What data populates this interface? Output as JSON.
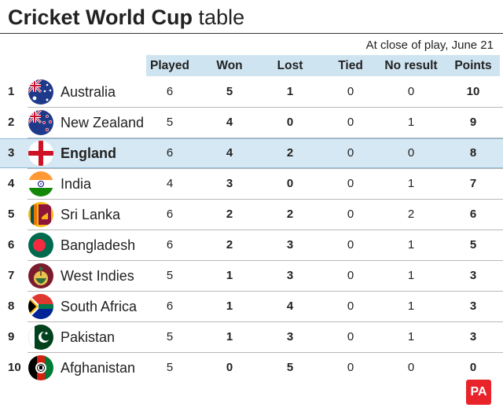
{
  "title": {
    "bold": "Cricket World Cup",
    "rest": "table"
  },
  "note": "At close of play, June 21",
  "columns": [
    "Played",
    "Won",
    "Lost",
    "Tied",
    "No result",
    "Points"
  ],
  "rows": [
    {
      "rank": "1",
      "team": "Australia",
      "flag": "australia-flag-icon",
      "played": "6",
      "won": "5",
      "lost": "1",
      "tied": "0",
      "nr": "0",
      "points": "10",
      "highlight": false
    },
    {
      "rank": "2",
      "team": "New Zealand",
      "flag": "new-zealand-flag-icon",
      "played": "5",
      "won": "4",
      "lost": "0",
      "tied": "0",
      "nr": "1",
      "points": "9",
      "highlight": false
    },
    {
      "rank": "3",
      "team": "England",
      "flag": "england-flag-icon",
      "played": "6",
      "won": "4",
      "lost": "2",
      "tied": "0",
      "nr": "0",
      "points": "8",
      "highlight": true
    },
    {
      "rank": "4",
      "team": "India",
      "flag": "india-flag-icon",
      "played": "4",
      "won": "3",
      "lost": "0",
      "tied": "0",
      "nr": "1",
      "points": "7",
      "highlight": false
    },
    {
      "rank": "5",
      "team": "Sri Lanka",
      "flag": "sri-lanka-flag-icon",
      "played": "6",
      "won": "2",
      "lost": "2",
      "tied": "0",
      "nr": "2",
      "points": "6",
      "highlight": false
    },
    {
      "rank": "6",
      "team": "Bangladesh",
      "flag": "bangladesh-flag-icon",
      "played": "6",
      "won": "2",
      "lost": "3",
      "tied": "0",
      "nr": "1",
      "points": "5",
      "highlight": false
    },
    {
      "rank": "7",
      "team": "West Indies",
      "flag": "west-indies-flag-icon",
      "played": "5",
      "won": "1",
      "lost": "3",
      "tied": "0",
      "nr": "1",
      "points": "3",
      "highlight": false
    },
    {
      "rank": "8",
      "team": "South Africa",
      "flag": "south-africa-flag-icon",
      "played": "6",
      "won": "1",
      "lost": "4",
      "tied": "0",
      "nr": "1",
      "points": "3",
      "highlight": false
    },
    {
      "rank": "9",
      "team": "Pakistan",
      "flag": "pakistan-flag-icon",
      "played": "5",
      "won": "1",
      "lost": "3",
      "tied": "0",
      "nr": "1",
      "points": "3",
      "highlight": false
    },
    {
      "rank": "10",
      "team": "Afghanistan",
      "flag": "afghanistan-flag-icon",
      "played": "5",
      "won": "0",
      "lost": "5",
      "tied": "0",
      "nr": "0",
      "points": "0",
      "highlight": false
    }
  ],
  "logo": "PA",
  "colors": {
    "header_bg": "#cfe4f1",
    "highlight_bg": "#d6e8f3",
    "logo_red": "#e8232a"
  }
}
